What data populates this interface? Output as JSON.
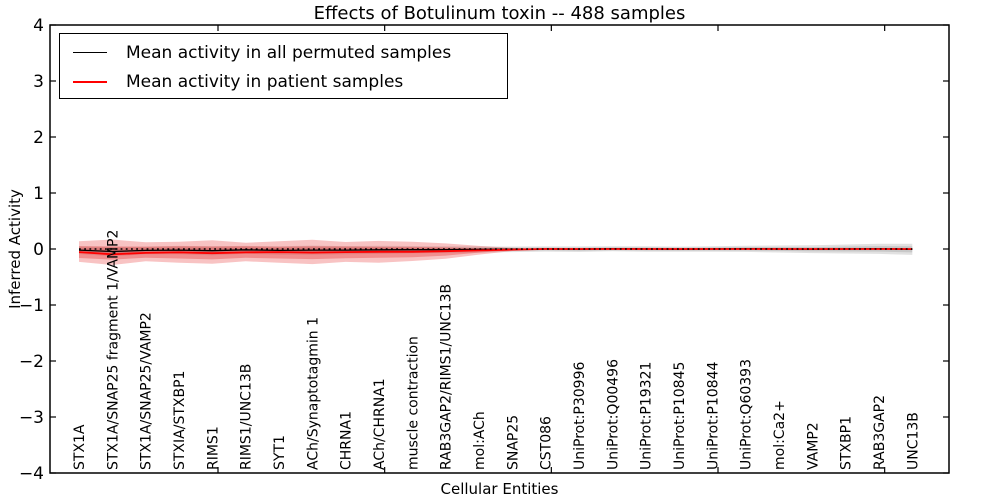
{
  "chart_data": {
    "type": "line",
    "title": "Effects of Botulinum toxin -- 488 samples",
    "xlabel": "Cellular Entities",
    "ylabel": "Inferred Activity",
    "ylim": [
      -4,
      4
    ],
    "ytick_labels": [
      "4",
      "3",
      "2",
      "1",
      "0",
      "−1",
      "−2",
      "−3",
      "−4"
    ],
    "ytick_values": [
      4,
      3,
      2,
      1,
      0,
      -1,
      -2,
      -3,
      -4
    ],
    "x_secondary_ticks": [
      4.17,
      9.17,
      14.17,
      19.17,
      24.17
    ],
    "grid": false,
    "legend_position": "upper left",
    "categories": [
      "STX1A",
      "STX1A/SNAP25 fragment 1/VAMP2",
      "STX1A/SNAP25/VAMP2",
      "STXIA/STXBP1",
      "RIMS1",
      "RIMS1/UNC13B",
      "SYT1",
      "ACh/Synaptotagmin 1",
      "CHRNA1",
      "ACh/CHRNA1",
      "muscle contraction",
      "RAB3GAP2/RIMS1/UNC13B",
      "mol:ACh",
      "SNAP25",
      "CST086",
      "UniProt:P30996",
      "UniProt:Q00496",
      "UniProt:P19321",
      "UniProt:P10845",
      "UniProt:P10844",
      "UniProt:Q60393",
      "mol:Ca2+",
      "VAMP2",
      "STXBP1",
      "RAB3GAP2",
      "UNC13B"
    ],
    "series": [
      {
        "name": "Mean activity in all permuted samples",
        "color": "#000000",
        "style": "solid",
        "values": [
          -0.02,
          -0.045,
          -0.025,
          -0.02,
          -0.03,
          -0.015,
          -0.025,
          -0.02,
          -0.02,
          -0.015,
          -0.012,
          -0.01,
          -0.008,
          -0.005,
          0,
          -0.004,
          0.004,
          0,
          -0.004,
          0,
          0.004,
          0,
          -0.004,
          0,
          0.003,
          -0.005
        ]
      },
      {
        "name": "Mean activity in patient samples",
        "color": "#ff0000",
        "style": "solid",
        "values": [
          -0.055,
          -0.095,
          -0.07,
          -0.06,
          -0.075,
          -0.06,
          -0.055,
          -0.065,
          -0.055,
          -0.05,
          -0.05,
          -0.04,
          -0.025,
          -0.01,
          0,
          0,
          0,
          0,
          0,
          0,
          0,
          0,
          0,
          0,
          0,
          0
        ]
      }
    ],
    "zero_reference_line": {
      "y": 0,
      "style": "dotted",
      "color": "#000000"
    },
    "patient_band": {
      "start_index": 0,
      "outer_color": "rgba(230,40,40,0.28)",
      "inner_color": "rgba(225,35,35,0.33)",
      "upper": [
        0.14,
        0.17,
        0.12,
        0.13,
        0.155,
        0.11,
        0.14,
        0.165,
        0.125,
        0.145,
        0.13,
        0.1,
        0.055,
        0.02,
        0.003
      ],
      "lower": [
        -0.23,
        -0.285,
        -0.22,
        -0.245,
        -0.265,
        -0.22,
        -0.245,
        -0.27,
        -0.23,
        -0.245,
        -0.215,
        -0.175,
        -0.1,
        -0.035,
        -0.004
      ],
      "inner_upper": [
        0.05,
        0.045,
        0.04,
        0.05,
        0.045,
        0.05,
        0.04,
        0.05,
        0.045,
        0.04,
        0.038,
        0.028,
        0.015,
        0.005,
        0.001
      ],
      "inner_lower": [
        -0.16,
        -0.19,
        -0.155,
        -0.17,
        -0.185,
        -0.158,
        -0.17,
        -0.18,
        -0.165,
        -0.158,
        -0.148,
        -0.118,
        -0.065,
        -0.02,
        -0.002
      ]
    },
    "permuted_band": {
      "outer_color": "rgba(40,40,40,0.14)",
      "inner_color": "rgba(40,40,40,0.13)",
      "halfwidth": [
        0.07,
        0.085,
        0.07,
        0.075,
        0.08,
        0.07,
        0.075,
        0.08,
        0.072,
        0.072,
        0.065,
        0.06,
        0.055,
        0.05,
        0.046,
        0.05,
        0.045,
        0.05,
        0.046,
        0.05,
        0.055,
        0.062,
        0.07,
        0.08,
        0.09,
        0.1
      ],
      "inner_scale": 0.55
    }
  }
}
